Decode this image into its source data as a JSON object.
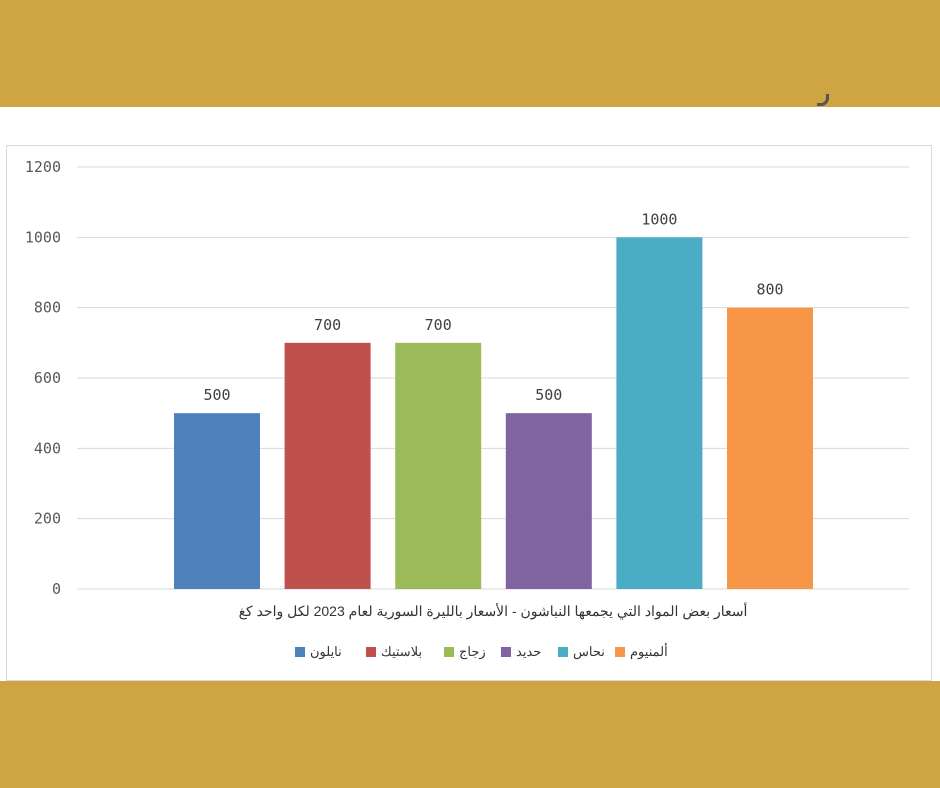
{
  "theme": {
    "band_color": "#cfa544"
  },
  "chart_data": {
    "type": "bar",
    "categories": [
      "نايلون",
      "بلاستيك",
      "زجاج",
      "حديد",
      "نحاس",
      "ألمنيوم"
    ],
    "values": [
      500,
      700,
      700,
      500,
      1000,
      800
    ],
    "colors": [
      "#4f81bd",
      "#c0504d",
      "#9bbb59",
      "#8064a2",
      "#4bacc6",
      "#f79646"
    ],
    "xlabel": "أسعار بعض المواد التي يجمعها النباشون - الأسعار بالليرة السورية لعام 2023 لكل واحد كغ",
    "ylim": [
      0,
      1200
    ],
    "yticks": [
      0,
      200,
      400,
      600,
      800,
      1000,
      1200
    ],
    "grid": true,
    "legend_position": "bottom"
  }
}
